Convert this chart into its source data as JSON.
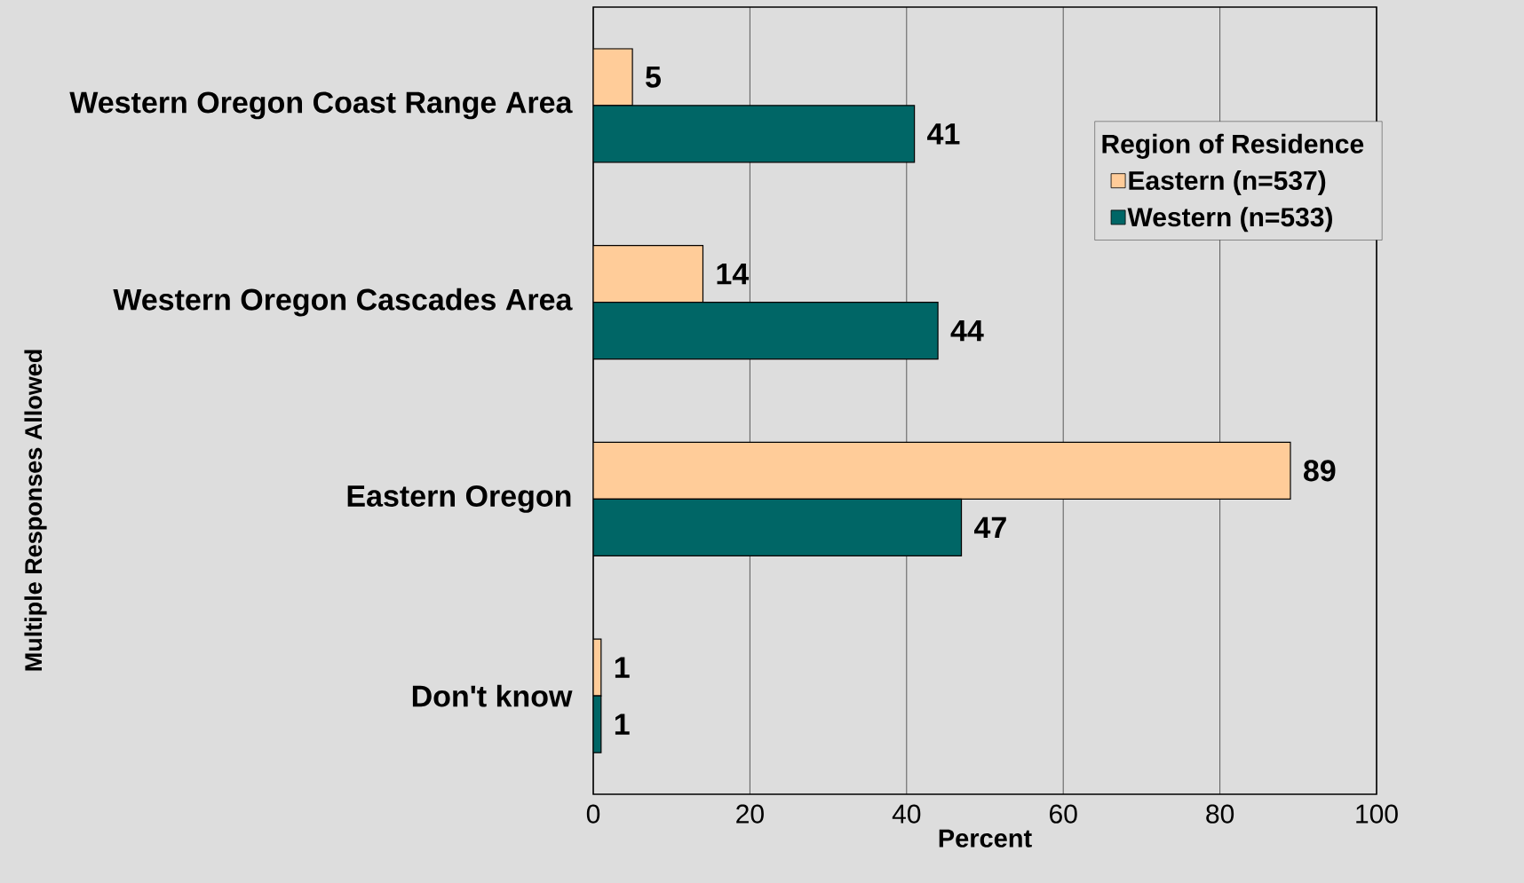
{
  "chart_data": {
    "type": "bar",
    "orientation": "horizontal",
    "annotations": [
      "Multiple Responses Allowed"
    ],
    "xlabel": "Percent",
    "legend_title": "Region of Residence",
    "legend": "top right",
    "grid": "x",
    "data_labels": true,
    "categories": [
      "Western Oregon Coast Range Area",
      "Western Oregon Cascades Area",
      "Eastern Oregon",
      "Don't know"
    ],
    "xlim": [
      0,
      100
    ],
    "xticks": [
      0,
      20,
      40,
      60,
      80,
      100
    ],
    "series": [
      {
        "name": "Eastern (n=537)",
        "color": "#ffcc99",
        "values": [
          5,
          14,
          89,
          1
        ]
      },
      {
        "name": "Western (n=533)",
        "color": "#006666",
        "values": [
          41,
          44,
          47,
          1
        ]
      }
    ]
  }
}
